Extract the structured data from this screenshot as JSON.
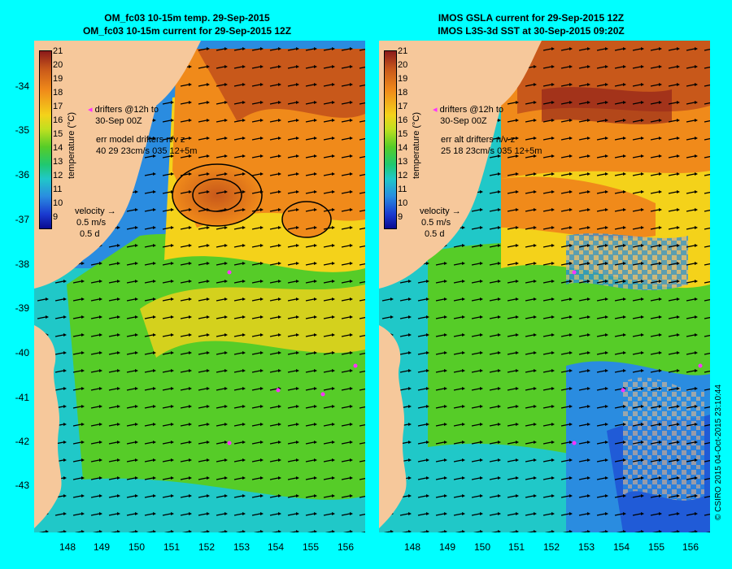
{
  "left_panel": {
    "title_line1": "OM_fc03 10-15m temp. 29-Sep-2015",
    "title_line2": "OM_fc03 10-15m current for 29-Sep-2015 12Z",
    "drifters_line1": "drifters @12h to",
    "drifters_line2": "30-Sep 00Z",
    "err_line1": "err model drifters n/v z",
    "err_line2": "40 29 23cm/s 035 12+5m"
  },
  "right_panel": {
    "title_line1": "IMOS GSLA current for 29-Sep-2015 12Z",
    "title_line2": "IMOS L3S-3d SST at 30-Sep-2015 09:20Z",
    "drifters_line1": "drifters @12h to",
    "drifters_line2": "30-Sep 00Z",
    "err_line1": "err alt drifters n/v z",
    "err_line2": "25 18 23cm/s 035 12+5m"
  },
  "velocity_legend": {
    "label": "velocity",
    "speed": "0.5 m/s",
    "duration": "0.5 d"
  },
  "colorbar": {
    "title": "temperature (°C)",
    "ticks": [
      "21",
      "20",
      "19",
      "18",
      "17",
      "16",
      "15",
      "14",
      "13",
      "12",
      "11",
      "10",
      "9"
    ]
  },
  "lat_labels": [
    "-34",
    "-35",
    "-36",
    "-37",
    "-38",
    "-39",
    "-40",
    "-41",
    "-42",
    "-43"
  ],
  "lon_labels": [
    "148",
    "149",
    "150",
    "151",
    "152",
    "153",
    "154",
    "155",
    "156"
  ],
  "credit": "© CSIRO 2015   04-Oct-2015 23:10:44",
  "colors": {
    "background": "#00ffff",
    "land": "#f6c89b",
    "warm": "#f08a1a",
    "hot": "#c8581a",
    "yellow": "#f4d21a",
    "green": "#56cc28",
    "cyan": "#20c8c8",
    "blue": "#2a8ce0",
    "cloud": "#c0b09a",
    "drifter": "#ff33ff"
  }
}
